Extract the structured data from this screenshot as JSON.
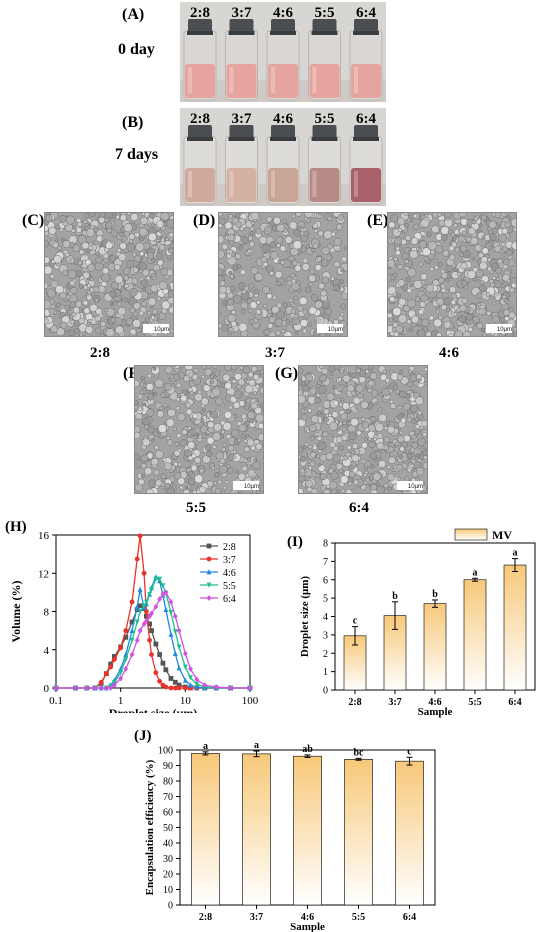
{
  "panels": {
    "A": {
      "label": "(A)",
      "time": "0 day",
      "vials": [
        "2:8",
        "3:7",
        "4:6",
        "5:5",
        "6:4"
      ],
      "liquid_color": "#e6a49e",
      "glass_color": "#d9d6d3"
    },
    "B": {
      "label": "(B)",
      "time": "7 days",
      "vials": [
        "2:8",
        "3:7",
        "4:6",
        "5:5",
        "6:4"
      ],
      "liquid_colors": [
        "#d1aa9e",
        "#d5b1a4",
        "#c9a595",
        "#b88a86",
        "#a8606a"
      ],
      "glass_color": "#dedcd8"
    },
    "C": {
      "label": "(C)",
      "caption": "2:8"
    },
    "D": {
      "label": "(D)",
      "caption": "3:7"
    },
    "E": {
      "label": "(E)",
      "caption": "4:6"
    },
    "F": {
      "label": "(F)",
      "caption": "5:5"
    },
    "G": {
      "label": "(G)",
      "caption": "6:4"
    },
    "scale_bar_label": "10μm"
  },
  "chart_data": [
    {
      "id": "H",
      "type": "line",
      "panel_label": "(H)",
      "xlabel": "Droplet size (μm)",
      "ylabel": "Volume (%)",
      "xscale": "log",
      "xlim": [
        0.1,
        100
      ],
      "ylim": [
        0,
        16
      ],
      "xticks": [
        0.1,
        1,
        10,
        100
      ],
      "xtick_labels": [
        "0.1",
        "1",
        "10",
        "100"
      ],
      "yticks": [
        0,
        4,
        8,
        12,
        16
      ],
      "legend_position": "top-right",
      "x": [
        0.1,
        0.2,
        0.3,
        0.4,
        0.5,
        0.6,
        0.7,
        0.8,
        1.0,
        1.2,
        1.5,
        1.8,
        2.0,
        2.3,
        2.5,
        2.8,
        3.0,
        3.5,
        4.0,
        4.5,
        5.0,
        6.0,
        7.0,
        8.0,
        10,
        12,
        15,
        20,
        30,
        50,
        100
      ],
      "series": [
        {
          "name": "2:8",
          "color": "#555555",
          "marker": "square",
          "values": [
            0,
            0,
            0,
            0,
            0.5,
            1.5,
            2.5,
            3.3,
            4.3,
            5.3,
            6.9,
            8.2,
            8.6,
            8.3,
            7.5,
            6.7,
            6.0,
            4.6,
            3.5,
            2.6,
            1.9,
            1.0,
            0.6,
            0.3,
            0.1,
            0,
            0,
            0,
            0,
            0,
            0
          ]
        },
        {
          "name": "3:7",
          "color": "#e8322a",
          "marker": "circle",
          "values": [
            0,
            0,
            0,
            0,
            0.6,
            1.5,
            2.2,
            3.0,
            4.2,
            6.0,
            9.0,
            13.5,
            15.9,
            12.0,
            8.0,
            5.0,
            3.5,
            1.6,
            0.7,
            0.3,
            0.1,
            0,
            0,
            0,
            0,
            0,
            0,
            0,
            0,
            0,
            0
          ]
        },
        {
          "name": "4:6",
          "color": "#1e88e5",
          "marker": "triangle",
          "values": [
            0,
            0,
            0,
            0,
            0,
            0,
            0.3,
            0.8,
            2.0,
            3.5,
            6.0,
            8.5,
            10.3,
            8.4,
            8.8,
            9.8,
            10.5,
            11.6,
            11.2,
            9.7,
            8.2,
            5.6,
            3.6,
            2.1,
            0.8,
            0.3,
            0.1,
            0,
            0,
            0,
            0
          ]
        },
        {
          "name": "5:5",
          "color": "#1fbf8f",
          "marker": "triangle-down",
          "values": [
            0,
            0,
            0,
            0,
            0,
            0,
            0.2,
            0.6,
            1.6,
            3.0,
            5.0,
            6.9,
            8.0,
            8.6,
            9.0,
            9.8,
            10.3,
            11.4,
            11.4,
            10.7,
            9.9,
            7.9,
            5.9,
            4.3,
            2.2,
            1.1,
            0.4,
            0.1,
            0,
            0,
            0
          ]
        },
        {
          "name": "6:4",
          "color": "#d152e0",
          "marker": "diamond",
          "values": [
            0,
            0,
            0,
            0,
            0,
            0,
            0,
            0.3,
            1.0,
            2.0,
            3.5,
            5.0,
            6.0,
            6.7,
            7.0,
            7.5,
            7.8,
            8.5,
            9.3,
            9.8,
            10.0,
            9.0,
            7.5,
            6.0,
            3.6,
            2.0,
            0.9,
            0.3,
            0.1,
            0,
            0
          ]
        }
      ]
    },
    {
      "id": "I",
      "type": "bar",
      "panel_label": "(I)",
      "xlabel": "Sample",
      "ylabel": "Droplet size (μm)",
      "categories": [
        "2:8",
        "3:7",
        "4:6",
        "5:5",
        "6:4"
      ],
      "values": [
        2.95,
        4.05,
        4.7,
        6.0,
        6.8
      ],
      "errors": [
        0.5,
        0.75,
        0.2,
        0.08,
        0.35
      ],
      "letters": [
        "c",
        "b",
        "b",
        "a",
        "a"
      ],
      "ylim": [
        0,
        8
      ],
      "yticks": [
        0,
        1,
        2,
        3,
        4,
        5,
        6,
        7,
        8
      ],
      "legend": [
        "MV"
      ],
      "legend_position": "top-right",
      "bar_gradient": [
        "#f7c879",
        "#ffffff"
      ]
    },
    {
      "id": "J",
      "type": "bar",
      "panel_label": "(J)",
      "xlabel": "Sample",
      "ylabel": "Encapsulation efficiency (%)",
      "categories": [
        "2:8",
        "3:7",
        "4:6",
        "5:5",
        "6:4"
      ],
      "values": [
        97.8,
        97.5,
        96.0,
        94.0,
        92.8
      ],
      "errors": [
        1.0,
        1.8,
        0.8,
        0.6,
        2.5
      ],
      "letters": [
        "a",
        "a",
        "ab",
        "bc",
        "c"
      ],
      "ylim": [
        0,
        100
      ],
      "yticks": [
        0,
        10,
        20,
        30,
        40,
        50,
        60,
        70,
        80,
        90,
        100
      ],
      "bar_gradient": [
        "#f7c879",
        "#ffffff"
      ]
    }
  ]
}
